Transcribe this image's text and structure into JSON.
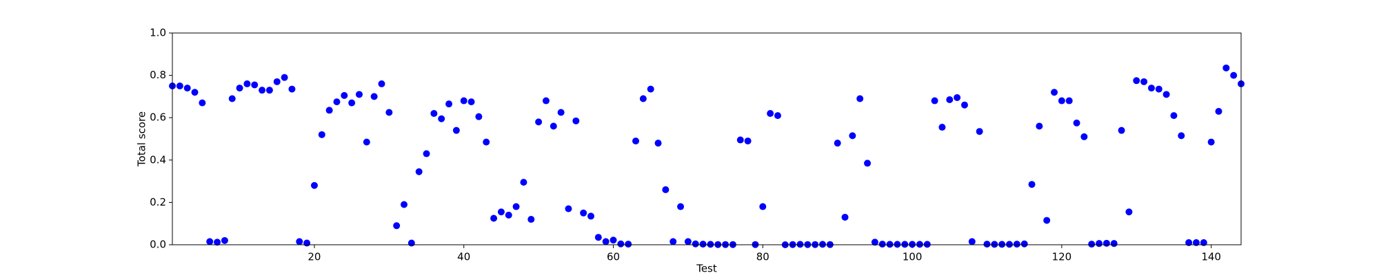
{
  "chart_data": {
    "type": "scatter",
    "x_label": "Test",
    "y_label": "Total score",
    "color": "#0000ff",
    "xlim": [
      1,
      144
    ],
    "ylim": [
      0,
      1
    ],
    "xticks": [
      20,
      40,
      60,
      80,
      100,
      120,
      140
    ],
    "yticks": [
      {
        "value": 0,
        "label": "0.0"
      },
      0.2,
      0.4,
      0.6,
      0.8,
      {
        "value": 1,
        "label": "1.0"
      }
    ],
    "x": [
      1,
      2,
      3,
      4,
      5,
      6,
      7,
      8,
      9,
      10,
      11,
      12,
      13,
      14,
      15,
      16,
      17,
      18,
      19,
      20,
      21,
      22,
      23,
      24,
      25,
      26,
      27,
      28,
      29,
      30,
      31,
      32,
      33,
      34,
      35,
      36,
      37,
      38,
      39,
      40,
      41,
      42,
      43,
      44,
      45,
      46,
      47,
      48,
      49,
      50,
      51,
      52,
      53,
      54,
      55,
      56,
      57,
      58,
      59,
      60,
      61,
      62,
      63,
      64,
      65,
      66,
      67,
      68,
      69,
      70,
      71,
      72,
      73,
      74,
      75,
      76,
      77,
      78,
      79,
      80,
      81,
      82,
      83,
      84,
      85,
      86,
      87,
      88,
      89,
      90,
      91,
      92,
      93,
      94,
      95,
      96,
      97,
      98,
      99,
      100,
      101,
      102,
      103,
      104,
      105,
      106,
      107,
      108,
      109,
      110,
      111,
      112,
      113,
      114,
      115,
      116,
      117,
      118,
      119,
      120,
      121,
      122,
      123,
      124,
      125,
      126,
      127,
      128,
      129,
      130,
      131,
      132,
      133,
      134,
      135,
      136,
      137,
      138,
      139,
      140,
      141,
      142,
      143,
      144
    ],
    "values": [
      0.75,
      0.75,
      0.74,
      0.72,
      0.67,
      0.015,
      0.012,
      0.02,
      0.69,
      0.74,
      0.76,
      0.755,
      0.73,
      0.73,
      0.77,
      0.79,
      0.735,
      0.015,
      0.008,
      0.28,
      0.52,
      0.635,
      0.675,
      0.705,
      0.67,
      0.71,
      0.485,
      0.7,
      0.76,
      0.625,
      0.09,
      0.19,
      0.008,
      0.345,
      0.43,
      0.62,
      0.595,
      0.665,
      0.54,
      0.68,
      0.675,
      0.605,
      0.485,
      0.125,
      0.155,
      0.14,
      0.18,
      0.295,
      0.12,
      0.58,
      0.68,
      0.56,
      0.625,
      0.17,
      0.585,
      0.15,
      0.135,
      0.035,
      0.015,
      0.022,
      0.004,
      0.003,
      0.49,
      0.69,
      0.735,
      0.48,
      0.26,
      0.015,
      0.18,
      0.015,
      0.004,
      0.003,
      0.002,
      0.001,
      0.001,
      0.001,
      0.495,
      0.49,
      0.001,
      0.18,
      0.62,
      0.61,
      0,
      0.001,
      0.002,
      0.001,
      0.001,
      0.002,
      0.001,
      0.48,
      0.13,
      0.515,
      0.69,
      0.385,
      0.012,
      0.003,
      0.002,
      0.002,
      0.002,
      0.002,
      0.002,
      0.002,
      0.68,
      0.555,
      0.685,
      0.695,
      0.66,
      0.015,
      0.535,
      0.003,
      0.002,
      0.002,
      0.002,
      0.003,
      0.004,
      0.285,
      0.56,
      0.115,
      0.72,
      0.68,
      0.68,
      0.575,
      0.51,
      0.003,
      0.006,
      0.007,
      0.006,
      0.54,
      0.155,
      0.775,
      0.77,
      0.74,
      0.735,
      0.71,
      0.61,
      0.515,
      0.01,
      0.01,
      0.01,
      0.485,
      0.63,
      0.835,
      0.8,
      0.76
    ]
  }
}
